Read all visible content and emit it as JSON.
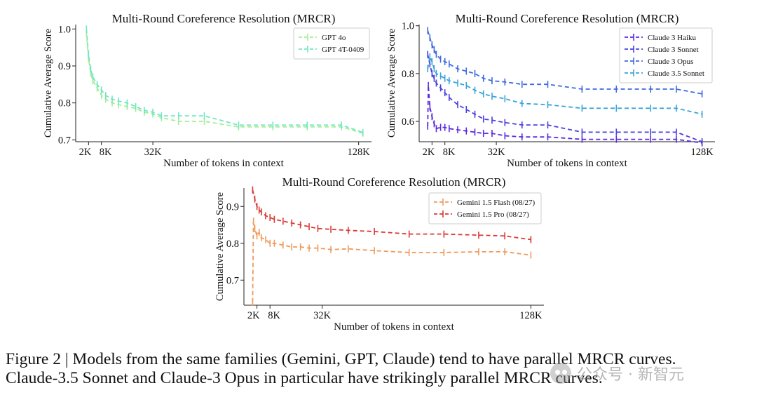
{
  "chart_data": [
    {
      "type": "line",
      "title": "Multi-Round Coreference Resolution (MRCR)",
      "xlabel": "Number of tokens in context",
      "ylabel": "Cumulative Average Score",
      "xlim": [
        -4,
        134
      ],
      "ylim": [
        0.695,
        1.012
      ],
      "xticks": [
        2,
        8,
        32,
        128
      ],
      "xtick_labels": [
        "2K",
        "8K",
        "32K",
        "128K"
      ],
      "yticks": [
        0.7,
        0.8,
        0.9,
        1.0
      ],
      "ytick_labels": [
        "0.7",
        "0.8",
        "0.9",
        "1.0"
      ],
      "legend": "top-right",
      "series": [
        {
          "name": "GPT 4o",
          "color": "#a6ee93",
          "x": [
            1,
            2,
            3,
            4,
            6,
            8,
            10,
            13,
            16,
            20,
            24,
            28,
            32,
            36,
            44,
            56,
            72,
            88,
            104,
            120,
            130
          ],
          "y": [
            0.99,
            0.92,
            0.88,
            0.86,
            0.84,
            0.82,
            0.81,
            0.8,
            0.795,
            0.79,
            0.785,
            0.775,
            0.77,
            0.76,
            0.75,
            0.75,
            0.735,
            0.735,
            0.735,
            0.735,
            0.718
          ]
        },
        {
          "name": "GPT 4T-0409",
          "color": "#72e6c4",
          "x": [
            1,
            2,
            3,
            4,
            6,
            8,
            10,
            13,
            16,
            20,
            24,
            28,
            32,
            36,
            44,
            56,
            72,
            88,
            104,
            120,
            130
          ],
          "y": [
            1.0,
            0.93,
            0.89,
            0.87,
            0.85,
            0.835,
            0.82,
            0.81,
            0.805,
            0.8,
            0.79,
            0.78,
            0.775,
            0.765,
            0.765,
            0.765,
            0.74,
            0.74,
            0.74,
            0.74,
            0.72
          ]
        }
      ]
    },
    {
      "type": "line",
      "title": "Multi-Round Coreference Resolution (MRCR)",
      "xlabel": "Number of tokens in context",
      "ylabel": "Cumulative Average Score",
      "xlim": [
        -4,
        134
      ],
      "ylim": [
        0.515,
        1.005
      ],
      "xticks": [
        2,
        8,
        32,
        128
      ],
      "xtick_labels": [
        "2K",
        "8K",
        "32K",
        "128K"
      ],
      "yticks": [
        0.6,
        0.8,
        1.0
      ],
      "ytick_labels": [
        "0.6",
        "0.8",
        "1.0"
      ],
      "legend": "top-right",
      "series": [
        {
          "name": "Claude 3 Haiku",
          "color": "#5b2be0",
          "x": [
            0,
            0.3,
            1,
            2,
            3,
            4,
            6,
            8,
            10,
            14,
            18,
            22,
            26,
            30,
            36,
            44,
            56,
            72,
            88,
            104,
            116,
            128
          ],
          "y": [
            0.58,
            0.75,
            0.66,
            0.62,
            0.59,
            0.57,
            0.575,
            0.575,
            0.57,
            0.565,
            0.56,
            0.555,
            0.55,
            0.55,
            0.54,
            0.535,
            0.535,
            0.525,
            0.525,
            0.525,
            0.525,
            0.51
          ]
        },
        {
          "name": "Claude 3 Sonnet",
          "color": "#4a40df",
          "x": [
            0,
            1,
            2,
            3,
            4,
            6,
            8,
            10,
            14,
            18,
            22,
            26,
            30,
            36,
            44,
            56,
            72,
            88,
            104,
            116,
            128
          ],
          "y": [
            0.88,
            0.84,
            0.8,
            0.78,
            0.76,
            0.74,
            0.72,
            0.7,
            0.67,
            0.65,
            0.63,
            0.61,
            0.605,
            0.595,
            0.585,
            0.585,
            0.555,
            0.555,
            0.555,
            0.555,
            0.515
          ]
        },
        {
          "name": "Claude 3 Opus",
          "color": "#3f6be0",
          "x": [
            0,
            1,
            2,
            3,
            4,
            6,
            8,
            10,
            14,
            18,
            22,
            26,
            30,
            36,
            44,
            56,
            72,
            88,
            104,
            116,
            128
          ],
          "y": [
            0.98,
            0.95,
            0.92,
            0.9,
            0.88,
            0.86,
            0.85,
            0.84,
            0.82,
            0.81,
            0.8,
            0.78,
            0.77,
            0.765,
            0.755,
            0.755,
            0.735,
            0.735,
            0.735,
            0.735,
            0.715
          ]
        },
        {
          "name": "Claude 3.5 Sonnet",
          "color": "#3aa3d9",
          "x": [
            0,
            1,
            2,
            3,
            4,
            6,
            8,
            10,
            14,
            18,
            22,
            26,
            30,
            36,
            44,
            56,
            72,
            88,
            104,
            116,
            128
          ],
          "y": [
            0.82,
            0.87,
            0.85,
            0.82,
            0.8,
            0.79,
            0.78,
            0.77,
            0.76,
            0.75,
            0.73,
            0.715,
            0.705,
            0.695,
            0.675,
            0.67,
            0.655,
            0.655,
            0.655,
            0.655,
            0.63
          ]
        }
      ]
    },
    {
      "type": "line",
      "title": "Multi-Round Coreference Resolution (MRCR)",
      "xlabel": "Number of tokens in context",
      "ylabel": "Cumulative Average Score",
      "xlim": [
        -4,
        134
      ],
      "ylim": [
        0.632,
        0.95
      ],
      "xticks": [
        2,
        8,
        32,
        128
      ],
      "xtick_labels": [
        "2K",
        "8K",
        "32K",
        "128K"
      ],
      "yticks": [
        0.7,
        0.8,
        0.9
      ],
      "ytick_labels": [
        "0.7",
        "0.8",
        "0.9"
      ],
      "legend": "top-right",
      "series": [
        {
          "name": "Gemini 1.5 Flash (08/27)",
          "color": "#ee9a5c",
          "x": [
            0,
            0.4,
            1,
            2,
            3,
            4,
            6,
            8,
            10,
            14,
            18,
            22,
            26,
            30,
            36,
            44,
            56,
            72,
            88,
            104,
            116,
            128
          ],
          "y": [
            0.64,
            0.86,
            0.84,
            0.82,
            0.83,
            0.815,
            0.81,
            0.8,
            0.8,
            0.795,
            0.79,
            0.79,
            0.787,
            0.787,
            0.783,
            0.785,
            0.78,
            0.775,
            0.775,
            0.777,
            0.777,
            0.768
          ]
        },
        {
          "name": "Gemini 1.5 Pro (08/27)",
          "color": "#d93a36",
          "x": [
            0,
            1,
            2,
            3,
            4,
            6,
            8,
            10,
            14,
            18,
            22,
            26,
            30,
            36,
            44,
            56,
            72,
            88,
            104,
            116,
            128
          ],
          "y": [
            0.945,
            0.92,
            0.9,
            0.89,
            0.885,
            0.875,
            0.87,
            0.865,
            0.86,
            0.855,
            0.85,
            0.845,
            0.84,
            0.838,
            0.835,
            0.832,
            0.825,
            0.825,
            0.822,
            0.82,
            0.81
          ]
        }
      ]
    }
  ],
  "caption": {
    "line1": "Figure 2 | Models from the same families (Gemini, GPT, Claude) tend to have parallel MRCR curves.",
    "line2": "Claude-3.5 Sonnet and Claude-3 Opus in particular have strikingly parallel MRCR curves."
  },
  "watermark": {
    "text": "公众号 · 新智元",
    "icon": "wechat-icon"
  }
}
